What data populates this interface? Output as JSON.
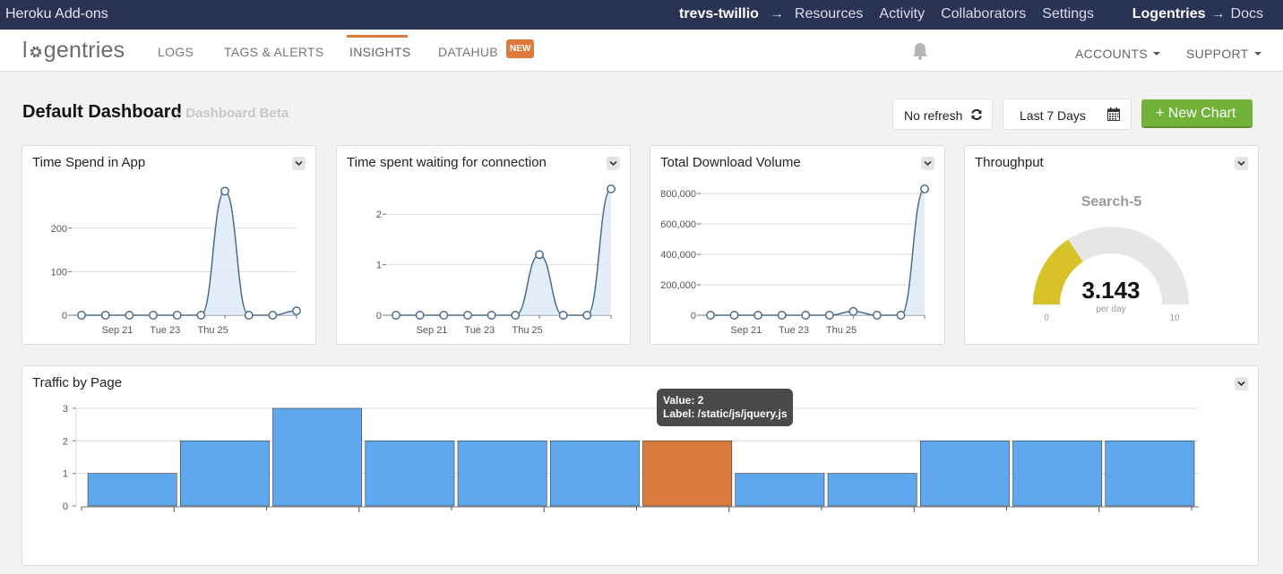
{
  "heroku": {
    "title": "Heroku Add-ons",
    "app": "trevs-twillio",
    "arrow": "→",
    "links": [
      "Resources",
      "Activity",
      "Collaborators",
      "Settings"
    ],
    "brand": "Logentries",
    "docs": "Docs"
  },
  "nav": {
    "logo": "logentries",
    "logo_pre": "l",
    "logo_post": "gentries",
    "items": [
      "LOGS",
      "TAGS & ALERTS",
      "INSIGHTS",
      "DATAHUB"
    ],
    "active": "INSIGHTS",
    "new_badge": "NEW",
    "accounts": "ACCOUNTS",
    "support": "SUPPORT"
  },
  "toolbar": {
    "title": "Default Dashboard",
    "subtitle": "- Dashboard Beta",
    "refresh": "No refresh",
    "range": "Last 7 Days",
    "new_chart": "+ New Chart"
  },
  "colors": {
    "accent": "#e07a3b",
    "green": "#72b13a",
    "line": "#4a6d8c",
    "bar": "#5fa8ee",
    "bar_highlight": "#d87b3c",
    "gauge_fill": "#d7c329"
  },
  "panels": [
    {
      "title": "Time Spend in App"
    },
    {
      "title": "Time spent waiting for connection"
    },
    {
      "title": "Total Download Volume"
    },
    {
      "title": "Throughput"
    },
    {
      "title": "Traffic by Page"
    }
  ],
  "chart_data": [
    {
      "type": "area",
      "title": "Time Spend in App",
      "x_ticks": [
        "Sep 21",
        "Tue 23",
        "Thu 25"
      ],
      "y_ticks": [
        "0",
        "100",
        "200"
      ],
      "ylim": [
        0,
        290
      ],
      "values": [
        0,
        0,
        0,
        0,
        0,
        0,
        285,
        0,
        0,
        10
      ]
    },
    {
      "type": "area",
      "title": "Time spent waiting for connection",
      "x_ticks": [
        "Sep 21",
        "Tue 23",
        "Thu 25"
      ],
      "y_ticks": [
        "0",
        "1",
        "2"
      ],
      "ylim": [
        0,
        2.5
      ],
      "values": [
        0,
        0,
        0,
        0,
        0,
        0,
        1.2,
        0,
        0,
        2.5
      ]
    },
    {
      "type": "area",
      "title": "Total Download Volume",
      "x_ticks": [
        "Sep 21",
        "Tue 23",
        "Thu 25"
      ],
      "y_ticks": [
        "0",
        "200,000",
        "400,000",
        "600,000",
        "800,000"
      ],
      "ylim": [
        0,
        830000
      ],
      "values": [
        0,
        0,
        0,
        0,
        0,
        0,
        25000,
        0,
        0,
        830000
      ]
    },
    {
      "type": "gauge",
      "title": "Throughput",
      "label": "Search-5",
      "value": 3.143,
      "value_text": "3.143",
      "unit": "per day",
      "min": 0,
      "max": 10,
      "min_text": "0",
      "max_text": "10"
    },
    {
      "type": "bar",
      "title": "Traffic by Page",
      "values": [
        1,
        2,
        3,
        2,
        2,
        2,
        2,
        1,
        1,
        2,
        2,
        2
      ],
      "highlight_index": 6,
      "y_ticks": [
        "0",
        "1",
        "2",
        "3"
      ],
      "ylim": [
        0,
        3
      ],
      "tooltip": {
        "value_line": "Value: 2",
        "label_line": "Label: /static/js/jquery.js"
      }
    }
  ]
}
